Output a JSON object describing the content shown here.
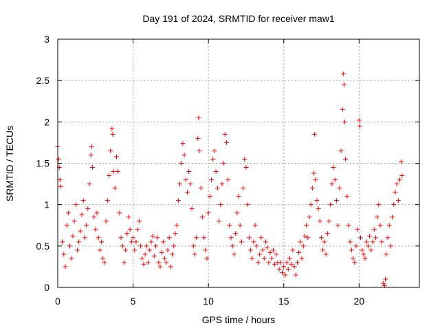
{
  "chart_data": {
    "type": "scatter",
    "title": "Day 191 of 2024, SRMTID for receiver maw1",
    "xlabel": "GPS time / hours",
    "ylabel": "SRMTID / TECUs",
    "xlim": [
      0,
      24
    ],
    "ylim": [
      0,
      3
    ],
    "xticks": [
      0,
      5,
      10,
      15,
      20
    ],
    "yticks": [
      0,
      0.5,
      1,
      1.5,
      2,
      2.5,
      3
    ],
    "xtick_labels": [
      "0",
      "5",
      "10",
      "15",
      "20"
    ],
    "ytick_labels": [
      "0",
      "0.5",
      "1",
      "1.5",
      "2",
      "2.5",
      "3"
    ],
    "grid": true,
    "marker": "+",
    "color": "#ff0000",
    "series": [
      {
        "name": "SRMTID",
        "points": [
          [
            0.0,
            1.7
          ],
          [
            0.05,
            1.55
          ],
          [
            0.1,
            1.45
          ],
          [
            0.15,
            1.3
          ],
          [
            0.2,
            1.22
          ],
          [
            0.3,
            0.55
          ],
          [
            0.4,
            0.4
          ],
          [
            0.5,
            0.25
          ],
          [
            0.6,
            0.75
          ],
          [
            0.7,
            0.9
          ],
          [
            0.8,
            0.5
          ],
          [
            0.9,
            0.35
          ],
          [
            1.0,
            0.62
          ],
          [
            1.1,
            0.8
          ],
          [
            1.2,
            1.0
          ],
          [
            1.3,
            0.45
          ],
          [
            1.4,
            0.55
          ],
          [
            1.5,
            0.68
          ],
          [
            1.6,
            0.88
          ],
          [
            1.7,
            1.05
          ],
          [
            1.8,
            0.6
          ],
          [
            1.9,
            0.75
          ],
          [
            2.0,
            0.95
          ],
          [
            2.1,
            1.25
          ],
          [
            2.2,
            1.6
          ],
          [
            2.25,
            1.7
          ],
          [
            2.3,
            1.45
          ],
          [
            2.4,
            0.85
          ],
          [
            2.5,
            0.7
          ],
          [
            2.6,
            0.9
          ],
          [
            2.7,
            0.6
          ],
          [
            2.8,
            0.45
          ],
          [
            2.9,
            0.55
          ],
          [
            3.0,
            0.35
          ],
          [
            3.1,
            0.3
          ],
          [
            3.2,
            0.8
          ],
          [
            3.3,
            1.05
          ],
          [
            3.4,
            1.35
          ],
          [
            3.5,
            1.65
          ],
          [
            3.6,
            1.92
          ],
          [
            3.65,
            1.85
          ],
          [
            3.7,
            1.4
          ],
          [
            3.8,
            1.2
          ],
          [
            3.9,
            1.58
          ],
          [
            4.0,
            1.4
          ],
          [
            4.1,
            0.9
          ],
          [
            4.2,
            0.6
          ],
          [
            4.3,
            0.5
          ],
          [
            4.4,
            0.3
          ],
          [
            4.5,
            0.45
          ],
          [
            4.6,
            0.65
          ],
          [
            4.7,
            0.85
          ],
          [
            4.8,
            0.7
          ],
          [
            4.9,
            0.55
          ],
          [
            5.0,
            0.6
          ],
          [
            5.1,
            0.45
          ],
          [
            5.2,
            0.55
          ],
          [
            5.3,
            0.7
          ],
          [
            5.4,
            0.8
          ],
          [
            5.5,
            0.5
          ],
          [
            5.6,
            0.35
          ],
          [
            5.7,
            0.28
          ],
          [
            5.8,
            0.4
          ],
          [
            5.9,
            0.5
          ],
          [
            6.0,
            0.3
          ],
          [
            6.1,
            0.45
          ],
          [
            6.2,
            0.55
          ],
          [
            6.3,
            0.62
          ],
          [
            6.4,
            0.38
          ],
          [
            6.5,
            0.5
          ],
          [
            6.6,
            0.6
          ],
          [
            6.7,
            0.3
          ],
          [
            6.8,
            0.25
          ],
          [
            6.9,
            0.42
          ],
          [
            7.0,
            0.55
          ],
          [
            7.1,
            0.35
          ],
          [
            7.2,
            0.3
          ],
          [
            7.3,
            0.45
          ],
          [
            7.4,
            0.6
          ],
          [
            7.5,
            0.25
          ],
          [
            7.6,
            0.4
          ],
          [
            7.7,
            0.5
          ],
          [
            7.8,
            0.65
          ],
          [
            7.9,
            0.75
          ],
          [
            8.0,
            1.05
          ],
          [
            8.1,
            1.25
          ],
          [
            8.2,
            1.5
          ],
          [
            8.3,
            1.74
          ],
          [
            8.4,
            1.6
          ],
          [
            8.5,
            1.3
          ],
          [
            8.6,
            1.15
          ],
          [
            8.7,
            1.4
          ],
          [
            8.8,
            1.25
          ],
          [
            8.9,
            0.95
          ],
          [
            9.0,
            0.5
          ],
          [
            9.1,
            0.4
          ],
          [
            9.2,
            0.6
          ],
          [
            9.3,
            1.8
          ],
          [
            9.35,
            2.05
          ],
          [
            9.4,
            1.65
          ],
          [
            9.5,
            1.2
          ],
          [
            9.6,
            0.85
          ],
          [
            9.7,
            0.6
          ],
          [
            9.8,
            0.45
          ],
          [
            9.9,
            0.35
          ],
          [
            10.0,
            0.9
          ],
          [
            10.1,
            1.1
          ],
          [
            10.2,
            1.3
          ],
          [
            10.3,
            1.55
          ],
          [
            10.4,
            1.65
          ],
          [
            10.5,
            1.4
          ],
          [
            10.6,
            1.2
          ],
          [
            10.7,
            0.8
          ],
          [
            10.8,
            1.0
          ],
          [
            10.9,
            1.25
          ],
          [
            11.0,
            1.5
          ],
          [
            11.1,
            1.85
          ],
          [
            11.2,
            1.75
          ],
          [
            11.3,
            1.3
          ],
          [
            11.4,
            0.75
          ],
          [
            11.5,
            0.6
          ],
          [
            11.6,
            0.5
          ],
          [
            11.7,
            0.4
          ],
          [
            11.8,
            0.65
          ],
          [
            11.9,
            0.9
          ],
          [
            12.0,
            1.1
          ],
          [
            12.1,
            0.75
          ],
          [
            12.2,
            0.55
          ],
          [
            12.3,
            1.2
          ],
          [
            12.4,
            1.55
          ],
          [
            12.5,
            1.45
          ],
          [
            12.6,
            1.0
          ],
          [
            12.7,
            0.6
          ],
          [
            12.8,
            0.45
          ],
          [
            12.9,
            0.35
          ],
          [
            13.0,
            0.55
          ],
          [
            13.1,
            0.75
          ],
          [
            13.2,
            0.5
          ],
          [
            13.3,
            0.3
          ],
          [
            13.4,
            0.4
          ],
          [
            13.5,
            0.6
          ],
          [
            13.6,
            0.45
          ],
          [
            13.7,
            0.35
          ],
          [
            13.8,
            0.55
          ],
          [
            13.9,
            0.48
          ],
          [
            14.0,
            0.3
          ],
          [
            14.1,
            0.42
          ],
          [
            14.2,
            0.35
          ],
          [
            14.3,
            0.45
          ],
          [
            14.4,
            0.28
          ],
          [
            14.5,
            0.4
          ],
          [
            14.6,
            0.3
          ],
          [
            14.7,
            0.22
          ],
          [
            14.8,
            0.3
          ],
          [
            14.9,
            0.18
          ],
          [
            15.0,
            0.25
          ],
          [
            15.1,
            0.15
          ],
          [
            15.2,
            0.3
          ],
          [
            15.3,
            0.22
          ],
          [
            15.4,
            0.35
          ],
          [
            15.5,
            0.28
          ],
          [
            15.6,
            0.45
          ],
          [
            15.7,
            0.25
          ],
          [
            15.8,
            0.15
          ],
          [
            15.9,
            0.3
          ],
          [
            16.0,
            0.42
          ],
          [
            16.1,
            0.55
          ],
          [
            16.2,
            0.35
          ],
          [
            16.3,
            0.5
          ],
          [
            16.4,
            0.62
          ],
          [
            16.5,
            0.75
          ],
          [
            16.6,
            0.6
          ],
          [
            16.7,
            0.85
          ],
          [
            16.8,
            1.0
          ],
          [
            16.9,
            1.2
          ],
          [
            17.0,
            1.38
          ],
          [
            17.05,
            1.85
          ],
          [
            17.1,
            1.3
          ],
          [
            17.2,
            1.05
          ],
          [
            17.3,
            0.95
          ],
          [
            17.4,
            0.8
          ],
          [
            17.5,
            0.6
          ],
          [
            17.6,
            0.45
          ],
          [
            17.7,
            0.55
          ],
          [
            17.8,
            0.4
          ],
          [
            17.9,
            0.65
          ],
          [
            18.0,
            0.8
          ],
          [
            18.1,
            1.0
          ],
          [
            18.2,
            1.25
          ],
          [
            18.3,
            1.45
          ],
          [
            18.4,
            1.3
          ],
          [
            18.5,
            1.05
          ],
          [
            18.6,
            0.75
          ],
          [
            18.7,
            1.2
          ],
          [
            18.8,
            1.65
          ],
          [
            18.9,
            2.15
          ],
          [
            18.95,
            2.58
          ],
          [
            19.0,
            2.45
          ],
          [
            19.05,
            2.0
          ],
          [
            19.1,
            1.55
          ],
          [
            19.2,
            1.1
          ],
          [
            19.3,
            0.75
          ],
          [
            19.4,
            0.55
          ],
          [
            19.5,
            0.45
          ],
          [
            19.6,
            0.35
          ],
          [
            19.7,
            0.3
          ],
          [
            19.8,
            0.5
          ],
          [
            19.9,
            0.7
          ],
          [
            20.0,
            2.02
          ],
          [
            20.05,
            1.95
          ],
          [
            20.1,
            0.6
          ],
          [
            20.2,
            0.45
          ],
          [
            20.3,
            0.4
          ],
          [
            20.4,
            0.35
          ],
          [
            20.5,
            0.55
          ],
          [
            20.6,
            0.5
          ],
          [
            20.7,
            0.62
          ],
          [
            20.8,
            0.45
          ],
          [
            20.9,
            0.55
          ],
          [
            21.0,
            0.7
          ],
          [
            21.1,
            0.6
          ],
          [
            21.2,
            0.85
          ],
          [
            21.3,
            1.0
          ],
          [
            21.4,
            0.75
          ],
          [
            21.5,
            0.55
          ],
          [
            21.6,
            0.05
          ],
          [
            21.7,
            0.02
          ],
          [
            21.75,
            0.1
          ],
          [
            21.8,
            0.4
          ],
          [
            21.9,
            0.6
          ],
          [
            22.0,
            0.75
          ],
          [
            22.1,
            0.5
          ],
          [
            22.2,
            0.85
          ],
          [
            22.3,
            1.0
          ],
          [
            22.4,
            1.15
          ],
          [
            22.5,
            1.25
          ],
          [
            22.6,
            1.05
          ],
          [
            22.7,
            1.3
          ],
          [
            22.8,
            1.52
          ],
          [
            22.85,
            1.35
          ]
        ]
      }
    ]
  }
}
